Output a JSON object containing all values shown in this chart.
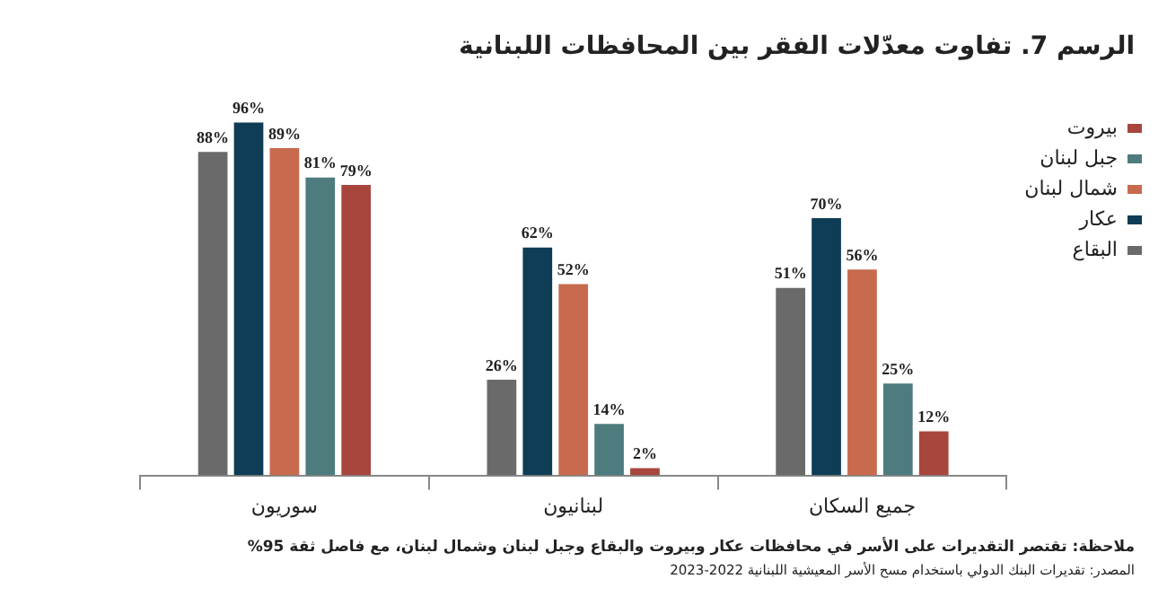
{
  "chart_data": {
    "type": "bar",
    "title": "الرسم 7. تفاوت معدّلات الفقر بين المحافظات اللبنانية",
    "categories": [
      "سوريون",
      "لبنانيون",
      "جميع السكان"
    ],
    "series": [
      {
        "name": "البقاع",
        "color": "#6b6a6a",
        "values": [
          88,
          26,
          51
        ],
        "value_labels": [
          "88%",
          "26%",
          "51%"
        ]
      },
      {
        "name": "عكار",
        "color": "#0e3d55",
        "values": [
          96,
          62,
          70
        ],
        "value_labels": [
          "96%",
          "62%",
          "70%"
        ]
      },
      {
        "name": "شمال لبنان",
        "color": "#c76a4d",
        "values": [
          89,
          52,
          56
        ],
        "value_labels": [
          "89%",
          "52%",
          "56%"
        ]
      },
      {
        "name": "جبل لبنان",
        "color": "#4e7c7e",
        "values": [
          81,
          14,
          25
        ],
        "value_labels": [
          "81%",
          "14%",
          "25%"
        ]
      },
      {
        "name": "بيروت",
        "color": "#a8463e",
        "values": [
          79,
          2,
          12
        ],
        "value_labels": [
          "79%",
          "2%",
          "12%"
        ]
      }
    ],
    "legend": "top right",
    "grid": false,
    "annotations": [
      "ملاحظة: تقتصر التقديرات على الأسر في محافظات عكار وبيروت والبقاع وجبل لبنان وشمال لبنان، مع فاصل ثقة 95%",
      "المصدر: تقديرات البنك الدولي باستخدام مسح الأسر المعيشية اللبنانية 2022-2023"
    ]
  }
}
